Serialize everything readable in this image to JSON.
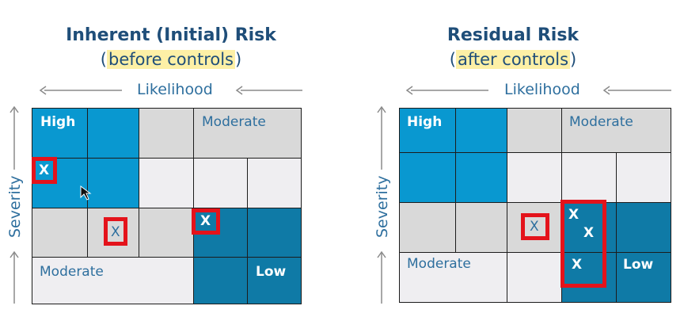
{
  "left": {
    "title": "Inherent (Initial) Risk",
    "subtitle_before": "(",
    "subtitle_highlight": "before controls",
    "subtitle_after": ")",
    "likelihood_label": "Likelihood",
    "severity_label": "Severity",
    "labels": {
      "high": "High",
      "moderate_top": "Moderate",
      "moderate_bottom": "Moderate",
      "low": "Low"
    },
    "marks": [
      "X",
      "X",
      "X"
    ]
  },
  "right": {
    "title": "Residual Risk",
    "subtitle_before": "(",
    "subtitle_highlight": "after controls",
    "subtitle_after": ")",
    "likelihood_label": "Likelihood",
    "severity_label": "Severity",
    "labels": {
      "high": "High",
      "moderate_top": "Moderate",
      "moderate_bottom": "Moderate",
      "low": "Low"
    },
    "marks": [
      "X",
      "X",
      "X",
      "X"
    ]
  },
  "colors": {
    "high": "#0998d0",
    "low": "#0f7aa6",
    "moderate": "#d9d9d9",
    "light": "#efeef1",
    "marker": "#e4131b",
    "text": "#1f4e79"
  }
}
